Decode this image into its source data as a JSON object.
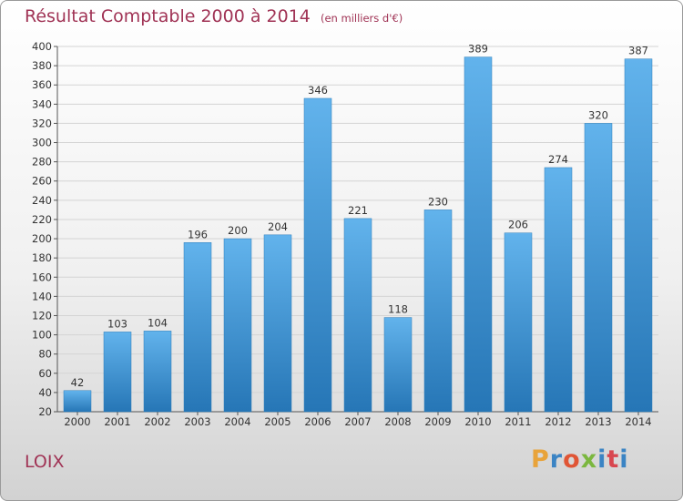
{
  "header": {
    "title": "Résultat Comptable 2000 à 2014",
    "subtitle": "(en milliers d'€)"
  },
  "footer": {
    "commune": "LOIX",
    "logo_text": "Proxiti"
  },
  "colors": {
    "title": "#a03355",
    "bar_light": "#62b3ec",
    "bar_dark": "#2676b6",
    "grid": "#d4d4d4"
  },
  "chart_data": {
    "type": "bar",
    "title": "Résultat Comptable 2000 à 2014",
    "subtitle": "(en milliers d'€)",
    "xlabel": "",
    "ylabel": "",
    "categories": [
      "2000",
      "2001",
      "2002",
      "2003",
      "2004",
      "2005",
      "2006",
      "2007",
      "2008",
      "2009",
      "2010",
      "2011",
      "2012",
      "2013",
      "2014"
    ],
    "values": [
      42,
      103,
      104,
      196,
      200,
      204,
      346,
      221,
      118,
      230,
      389,
      206,
      274,
      320,
      387
    ],
    "ylim": [
      20,
      400
    ],
    "yticks": [
      20,
      40,
      60,
      80,
      100,
      120,
      140,
      160,
      180,
      200,
      220,
      240,
      260,
      280,
      300,
      320,
      340,
      360,
      380,
      400
    ],
    "grid": "horizontal",
    "data_labels": true
  }
}
